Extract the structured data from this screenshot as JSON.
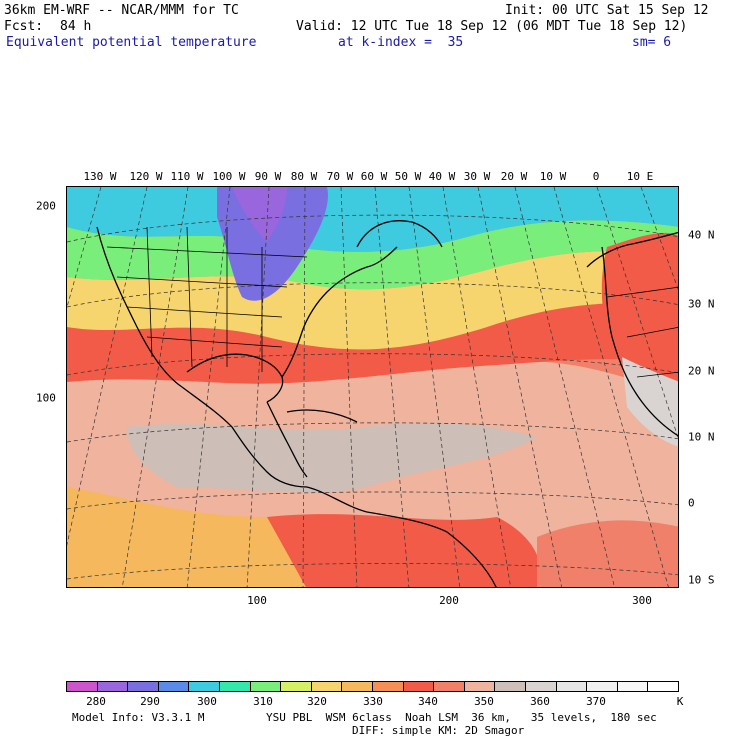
{
  "header": {
    "model_line": "36km EM-WRF -- NCAR/MMM for TC",
    "init_line": "Init: 00 UTC Sat 15 Sep 12",
    "fcst_label": "Fcst:",
    "fcst_value": "84 h",
    "valid_line": "Valid: 12 UTC Tue 18 Sep 12 (06 MDT Tue 18 Sep 12)",
    "field_name": "Equivalent potential temperature",
    "level": "at k-index =  35",
    "smoothing": "sm= 6"
  },
  "map": {
    "longitude_labels": [
      "130 W",
      "120 W",
      "110 W",
      "100 W",
      "90 W",
      "80 W",
      "70 W",
      "60 W",
      "50 W",
      "40 W",
      "30 W",
      "20 W",
      "10 W",
      "0",
      "10 E"
    ],
    "latitude_labels": [
      "40 N",
      "30 N",
      "20 N",
      "10 N",
      "0",
      "10 S"
    ],
    "grid_y_labels": [
      "200",
      "100"
    ],
    "grid_x_labels": [
      "100",
      "200",
      "300"
    ]
  },
  "colorbar": {
    "colors": [
      "#cc55cc",
      "#9966dd",
      "#7a6fe0",
      "#5a8be8",
      "#3ecbe0",
      "#33e8a8",
      "#7aee7a",
      "#d6f066",
      "#f6d56e",
      "#f6b85c",
      "#f58f55",
      "#f25b47",
      "#f0806a",
      "#efb39e",
      "#cdbfb8",
      "#d9d4d1",
      "#e6e6e6",
      "#f0f0f0",
      "#f7f7f7",
      "#ffffff"
    ],
    "labels": [
      "280",
      "290",
      "300",
      "310",
      "320",
      "330",
      "340",
      "350",
      "360",
      "370"
    ],
    "unit": "K"
  },
  "footer": {
    "model_info": "Model Info: V3.3.1 M",
    "physics": "YSU PBL  WSM 6class  Noah LSM  36 km,   35 levels,  180 sec",
    "diffusion": "DIFF: simple KM: 2D Smagor"
  }
}
